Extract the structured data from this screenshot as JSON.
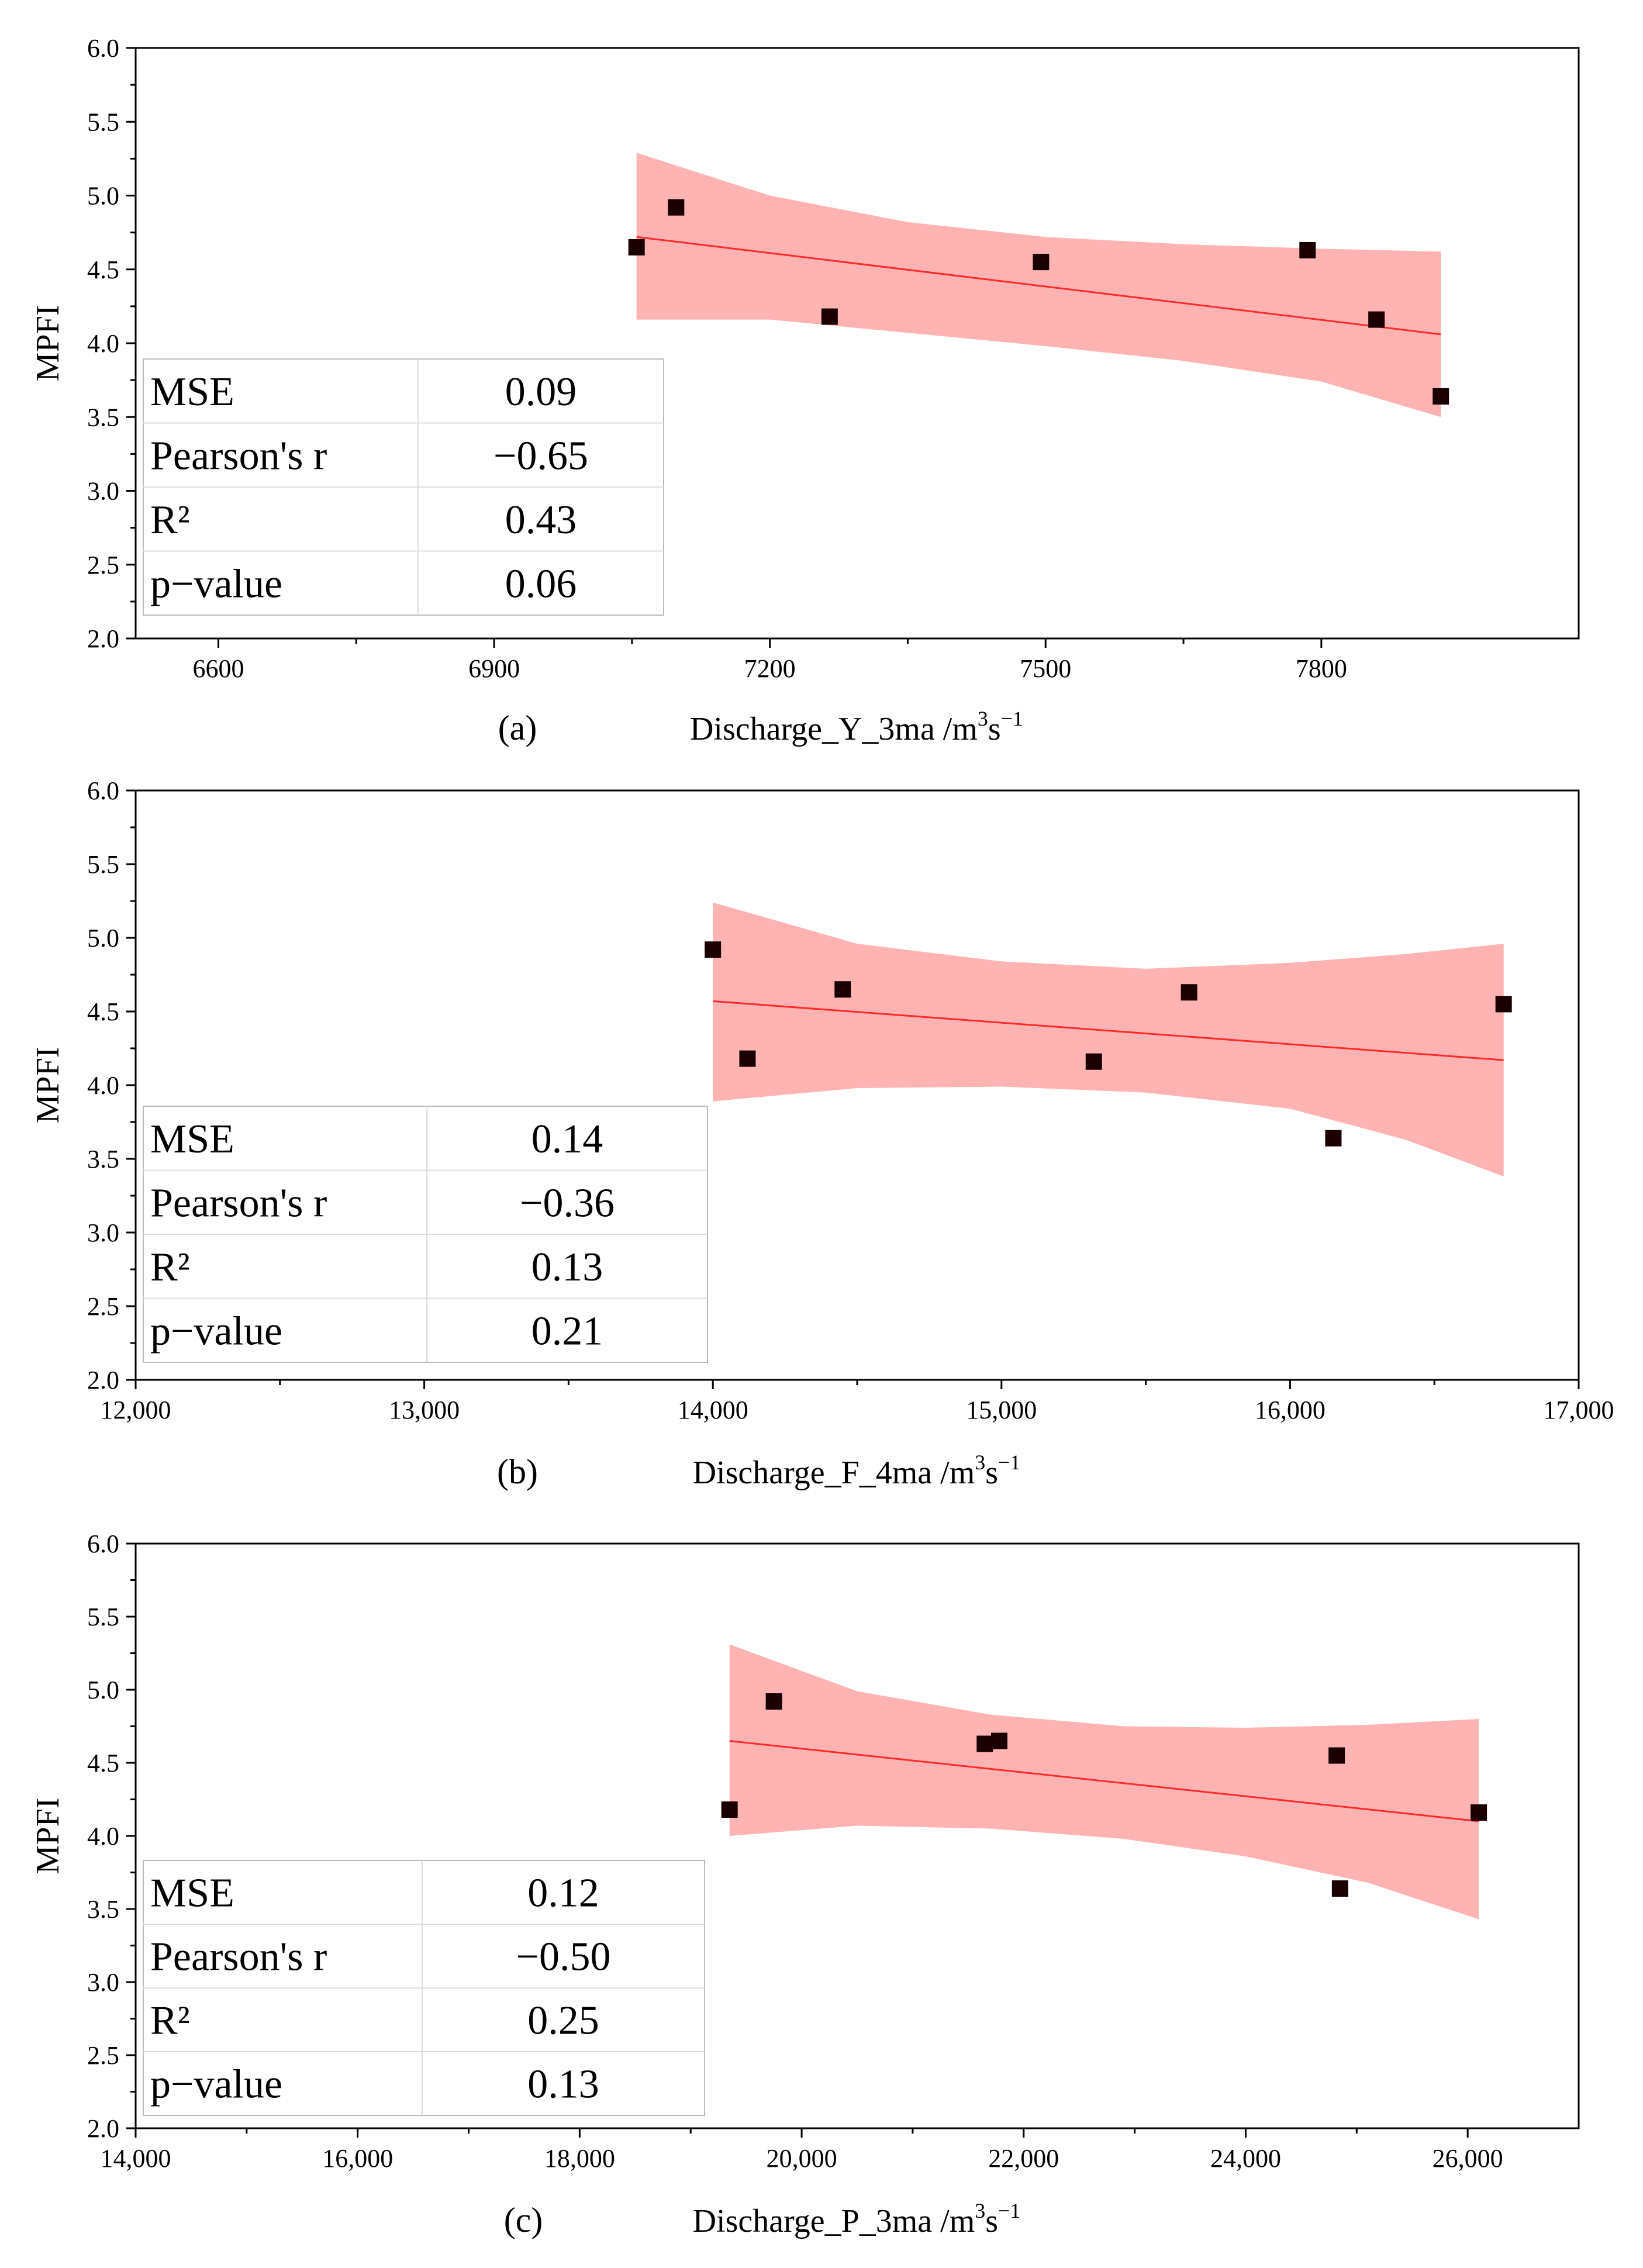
{
  "chart_data": [
    {
      "type": "scatter",
      "panel_label": "(a)",
      "xlabel_prefix": "Discharge_Y_3ma /m",
      "xlabel_unit_sup1": "3",
      "xlabel_unit_mid": "s",
      "xlabel_unit_sup2": "−1",
      "ylabel": "MPFI",
      "xlim": [
        6510,
        8080
      ],
      "ylim": [
        2.0,
        6.0
      ],
      "xticks": [
        6600,
        6900,
        7200,
        7500,
        7800
      ],
      "xtick_labels": [
        "6600",
        "6900",
        "7200",
        "7500",
        "7800"
      ],
      "yticks": [
        2.0,
        2.5,
        3.0,
        3.5,
        4.0,
        4.5,
        5.0,
        5.5,
        6.0
      ],
      "ytick_labels": [
        "2.0",
        "2.5",
        "3.0",
        "3.5",
        "4.0",
        "4.5",
        "5.0",
        "5.5",
        "6.0"
      ],
      "points": [
        {
          "x": 7055,
          "y": 4.65
        },
        {
          "x": 7098,
          "y": 4.92
        },
        {
          "x": 7265,
          "y": 4.18
        },
        {
          "x": 7495,
          "y": 4.55
        },
        {
          "x": 7785,
          "y": 4.63
        },
        {
          "x": 7860,
          "y": 4.16
        },
        {
          "x": 7930,
          "y": 3.64
        }
      ],
      "fit_line": {
        "x": [
          7055,
          7930
        ],
        "y": [
          4.72,
          4.06
        ]
      },
      "confidence_band": {
        "x": [
          7055,
          7200,
          7350,
          7500,
          7650,
          7800,
          7930
        ],
        "upper": [
          5.29,
          5.0,
          4.82,
          4.72,
          4.67,
          4.64,
          4.62
        ],
        "lower": [
          4.16,
          4.16,
          4.07,
          3.98,
          3.88,
          3.74,
          3.5
        ]
      },
      "stats": [
        {
          "label": "MSE",
          "value": "0.09"
        },
        {
          "label": "Pearson's r",
          "value": "−0.65"
        },
        {
          "label": "R²",
          "value": "0.43"
        },
        {
          "label": "p−value",
          "value": "0.06"
        }
      ]
    },
    {
      "type": "scatter",
      "panel_label": "(b)",
      "xlabel_prefix": "Discharge_F_4ma /m",
      "xlabel_unit_sup1": "3",
      "xlabel_unit_mid": "s",
      "xlabel_unit_sup2": "−1",
      "ylabel": "MPFI",
      "xlim": [
        12000,
        17000
      ],
      "ylim": [
        2.0,
        6.0
      ],
      "xticks": [
        12000,
        13000,
        14000,
        15000,
        16000,
        17000
      ],
      "xtick_labels": [
        "12,000",
        "13,000",
        "14,000",
        "15,000",
        "16,000",
        "17,000"
      ],
      "yticks": [
        2.0,
        2.5,
        3.0,
        3.5,
        4.0,
        4.5,
        5.0,
        5.5,
        6.0
      ],
      "ytick_labels": [
        "2.0",
        "2.5",
        "3.0",
        "3.5",
        "4.0",
        "4.5",
        "5.0",
        "5.5",
        "6.0"
      ],
      "points": [
        {
          "x": 14000,
          "y": 4.92
        },
        {
          "x": 14120,
          "y": 4.18
        },
        {
          "x": 14450,
          "y": 4.65
        },
        {
          "x": 15320,
          "y": 4.16
        },
        {
          "x": 15650,
          "y": 4.63
        },
        {
          "x": 16150,
          "y": 3.64
        },
        {
          "x": 16740,
          "y": 4.55
        }
      ],
      "fit_line": {
        "x": [
          14000,
          16740
        ],
        "y": [
          4.57,
          4.17
        ]
      },
      "confidence_band": {
        "x": [
          14000,
          14500,
          15000,
          15500,
          16000,
          16400,
          16740
        ],
        "upper": [
          5.24,
          4.96,
          4.84,
          4.79,
          4.83,
          4.89,
          4.96
        ],
        "lower": [
          3.89,
          3.98,
          3.99,
          3.95,
          3.84,
          3.63,
          3.38
        ]
      },
      "stats": [
        {
          "label": "MSE",
          "value": "0.14"
        },
        {
          "label": "Pearson's r",
          "value": "−0.36"
        },
        {
          "label": "R²",
          "value": "0.13"
        },
        {
          "label": "p−value",
          "value": "0.21"
        }
      ]
    },
    {
      "type": "scatter",
      "panel_label": "(c)",
      "xlabel_prefix": "Discharge_P_3ma /m",
      "xlabel_unit_sup1": "3",
      "xlabel_unit_mid": "s",
      "xlabel_unit_sup2": "−1",
      "ylabel": "MPFI",
      "xlim": [
        14000,
        27000
      ],
      "ylim": [
        2.0,
        6.0
      ],
      "xticks": [
        14000,
        16000,
        18000,
        20000,
        22000,
        24000,
        26000
      ],
      "xtick_labels": [
        "14,000",
        "16,000",
        "18,000",
        "20,000",
        "22,000",
        "24,000",
        "26,000"
      ],
      "yticks": [
        2.0,
        2.5,
        3.0,
        3.5,
        4.0,
        4.5,
        5.0,
        5.5,
        6.0
      ],
      "ytick_labels": [
        "2.0",
        "2.5",
        "3.0",
        "3.5",
        "4.0",
        "4.5",
        "5.0",
        "5.5",
        "6.0"
      ],
      "points": [
        {
          "x": 19350,
          "y": 4.18
        },
        {
          "x": 19750,
          "y": 4.92
        },
        {
          "x": 21650,
          "y": 4.63
        },
        {
          "x": 21780,
          "y": 4.65
        },
        {
          "x": 24820,
          "y": 4.55
        },
        {
          "x": 24850,
          "y": 3.64
        },
        {
          "x": 26100,
          "y": 4.16
        }
      ],
      "fit_line": {
        "x": [
          19350,
          26100
        ],
        "y": [
          4.65,
          4.1
        ]
      },
      "confidence_band": {
        "x": [
          19350,
          20500,
          21700,
          22900,
          24000,
          25100,
          26100
        ],
        "upper": [
          5.31,
          4.99,
          4.83,
          4.75,
          4.74,
          4.76,
          4.8
        ],
        "lower": [
          4.0,
          4.07,
          4.05,
          3.98,
          3.86,
          3.68,
          3.43
        ]
      },
      "stats": [
        {
          "label": "MSE",
          "value": "0.12"
        },
        {
          "label": "Pearson's r",
          "value": "−0.50"
        },
        {
          "label": "R²",
          "value": "0.25"
        },
        {
          "label": "p−value",
          "value": "0.13"
        }
      ]
    }
  ],
  "colors": {
    "band": "#ffb3b3",
    "fit_line": "#ff2a2a",
    "marker": "#1a0000",
    "axis": "#000000",
    "table_grid": "#dddddd"
  }
}
